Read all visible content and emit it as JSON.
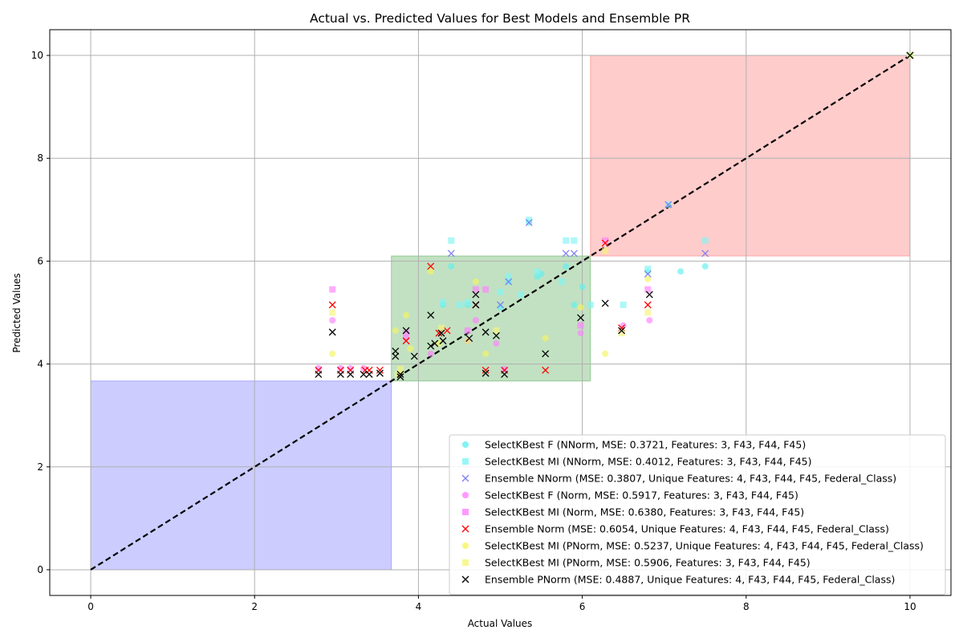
{
  "chart_data": {
    "type": "scatter",
    "title": "Actual vs. Predicted Values for Best Models and Ensemble PR",
    "xlabel": "Actual Values",
    "ylabel": "Predicted Values",
    "xlim": [
      -0.5,
      10.5
    ],
    "ylim": [
      -0.5,
      10.5
    ],
    "xticks": [
      0,
      2,
      4,
      6,
      8,
      10
    ],
    "yticks": [
      0,
      2,
      4,
      6,
      8,
      10
    ],
    "grid": true,
    "legend_position": "lower-right",
    "regions": [
      {
        "x": [
          0,
          3.67
        ],
        "y": [
          0,
          3.67
        ],
        "color": "#8080ff"
      },
      {
        "x": [
          3.67,
          6.1
        ],
        "y": [
          3.67,
          6.1
        ],
        "color": "#66b366"
      },
      {
        "x": [
          6.1,
          10
        ],
        "y": [
          6.1,
          10
        ],
        "color": "#ff8080"
      }
    ],
    "reference_line": {
      "from": [
        0,
        0
      ],
      "to": [
        10,
        10
      ],
      "color": "#000000",
      "style": "dashed"
    },
    "series": [
      {
        "name": "SelectKBest F (NNorm, MSE: 0.3721, Features: 3, F43, F44, F45)",
        "marker": "circle",
        "color": "#5ff0f0",
        "points": [
          [
            4.4,
            5.9
          ],
          [
            5.1,
            5.6
          ],
          [
            5.35,
            6.75
          ],
          [
            5.45,
            5.7
          ],
          [
            5.8,
            5.9
          ],
          [
            6.0,
            5.5
          ],
          [
            6.8,
            5.8
          ],
          [
            7.2,
            5.8
          ],
          [
            7.5,
            5.9
          ],
          [
            4.3,
            5.15
          ],
          [
            4.6,
            5.15
          ],
          [
            5.0,
            5.1
          ],
          [
            5.5,
            5.75
          ],
          [
            5.9,
            5.15
          ],
          [
            10,
            10
          ]
        ]
      },
      {
        "name": "SelectKBest MI (NNorm, MSE: 0.4012, Features: 3, F43, F44, F45)",
        "marker": "square",
        "color": "#7ff5f5",
        "points": [
          [
            4.4,
            6.4
          ],
          [
            5.35,
            6.8
          ],
          [
            5.8,
            6.4
          ],
          [
            5.9,
            6.4
          ],
          [
            7.5,
            6.4
          ],
          [
            5.1,
            5.7
          ],
          [
            5.45,
            5.8
          ],
          [
            6.8,
            5.85
          ],
          [
            7.05,
            7.1
          ],
          [
            4.3,
            5.2
          ],
          [
            4.5,
            5.15
          ],
          [
            4.6,
            5.2
          ],
          [
            5.0,
            5.4
          ],
          [
            5.25,
            5.35
          ],
          [
            5.75,
            5.6
          ],
          [
            6.1,
            5.15
          ],
          [
            6.5,
            5.15
          ],
          [
            10,
            10
          ]
        ]
      },
      {
        "name": "Ensemble NNorm (MSE: 0.3807, Unique Features: 4, F43, F44, F45, Federal_Class)",
        "marker": "x",
        "color": "#8080f0",
        "points": [
          [
            4.4,
            6.15
          ],
          [
            5.8,
            6.15
          ],
          [
            5.9,
            6.15
          ],
          [
            7.5,
            6.15
          ],
          [
            5.35,
            6.75
          ],
          [
            7.05,
            7.1
          ],
          [
            6.8,
            5.75
          ],
          [
            5.1,
            5.6
          ],
          [
            4.7,
            5.15
          ],
          [
            5.0,
            5.15
          ],
          [
            10,
            10
          ]
        ]
      },
      {
        "name": "SelectKBest F (Norm, MSE: 0.5917, Features: 3, F43, F44, F45)",
        "marker": "circle",
        "color": "#ff80ff",
        "points": [
          [
            2.95,
            4.85
          ],
          [
            2.78,
            3.92
          ],
          [
            3.05,
            3.92
          ],
          [
            3.17,
            3.92
          ],
          [
            3.33,
            3.92
          ],
          [
            3.85,
            4.5
          ],
          [
            4.6,
            4.45
          ],
          [
            4.7,
            4.85
          ],
          [
            4.95,
            4.4
          ],
          [
            5.05,
            3.9
          ],
          [
            5.98,
            4.6
          ],
          [
            6.82,
            4.85
          ],
          [
            6.5,
            4.75
          ],
          [
            4.15,
            4.2
          ]
        ]
      },
      {
        "name": "SelectKBest MI (Norm, MSE: 0.6380, Features: 3, F43, F44, F45)",
        "marker": "square",
        "color": "#ff80ff",
        "points": [
          [
            2.95,
            5.45
          ],
          [
            4.7,
            5.45
          ],
          [
            4.82,
            5.45
          ],
          [
            6.28,
            6.4
          ],
          [
            6.8,
            5.45
          ],
          [
            3.85,
            4.6
          ],
          [
            4.6,
            4.65
          ],
          [
            5.98,
            4.75
          ]
        ]
      },
      {
        "name": "Ensemble Norm (MSE: 0.6054, Unique Features: 4, F43, F44, F45, Federal_Class)",
        "marker": "x",
        "color": "#ff0000",
        "points": [
          [
            2.95,
            5.15
          ],
          [
            2.78,
            3.88
          ],
          [
            3.05,
            3.88
          ],
          [
            3.17,
            3.88
          ],
          [
            3.35,
            3.88
          ],
          [
            3.4,
            3.88
          ],
          [
            3.53,
            3.88
          ],
          [
            4.15,
            5.9
          ],
          [
            4.7,
            5.15
          ],
          [
            4.82,
            3.88
          ],
          [
            5.05,
            3.88
          ],
          [
            5.55,
            3.88
          ],
          [
            6.28,
            6.35
          ],
          [
            6.8,
            5.15
          ],
          [
            6.48,
            4.7
          ],
          [
            3.85,
            4.45
          ],
          [
            4.25,
            4.6
          ],
          [
            4.35,
            4.65
          ],
          [
            10,
            10
          ]
        ]
      },
      {
        "name": "SelectKBest MI (PNorm, MSE: 0.5237, Unique Features: 4, F43, F44, F45, Federal_Class)",
        "marker": "circle",
        "color": "#f5f55f",
        "points": [
          [
            2.95,
            4.2
          ],
          [
            3.72,
            4.65
          ],
          [
            3.85,
            4.95
          ],
          [
            4.15,
            5.8
          ],
          [
            4.7,
            5.6
          ],
          [
            4.82,
            4.2
          ],
          [
            5.55,
            4.5
          ],
          [
            6.28,
            4.2
          ],
          [
            6.8,
            5.65
          ],
          [
            5.98,
            5.1
          ],
          [
            3.9,
            4.3
          ],
          [
            4.25,
            4.4
          ],
          [
            4.6,
            4.45
          ]
        ]
      },
      {
        "name": "SelectKBest MI (PNorm, MSE: 0.5906, Features: 3, F43, F44, F45)",
        "marker": "square",
        "color": "#f5f57a",
        "points": [
          [
            2.95,
            5.0
          ],
          [
            3.75,
            3.8
          ],
          [
            3.78,
            3.9
          ],
          [
            4.28,
            4.7
          ],
          [
            4.95,
            4.65
          ],
          [
            6.28,
            6.2
          ],
          [
            6.8,
            5.0
          ],
          [
            6.48,
            4.6
          ],
          [
            10,
            10
          ]
        ]
      },
      {
        "name": "Ensemble PNorm (MSE: 0.4887, Unique Features: 4, F43, F44, F45, Federal_Class)",
        "marker": "x",
        "color": "#000000",
        "points": [
          [
            2.95,
            4.62
          ],
          [
            2.78,
            3.8
          ],
          [
            3.05,
            3.8
          ],
          [
            3.17,
            3.8
          ],
          [
            3.33,
            3.8
          ],
          [
            3.4,
            3.8
          ],
          [
            3.53,
            3.82
          ],
          [
            3.72,
            4.15
          ],
          [
            3.72,
            4.25
          ],
          [
            3.78,
            3.8
          ],
          [
            3.78,
            3.75
          ],
          [
            3.85,
            4.65
          ],
          [
            3.95,
            4.15
          ],
          [
            4.15,
            4.95
          ],
          [
            4.15,
            4.35
          ],
          [
            4.2,
            4.4
          ],
          [
            4.28,
            4.6
          ],
          [
            4.3,
            4.45
          ],
          [
            4.62,
            4.5
          ],
          [
            4.7,
            5.35
          ],
          [
            4.7,
            5.15
          ],
          [
            4.82,
            4.62
          ],
          [
            4.82,
            3.82
          ],
          [
            4.95,
            4.55
          ],
          [
            5.05,
            3.8
          ],
          [
            5.55,
            4.2
          ],
          [
            5.98,
            4.9
          ],
          [
            6.28,
            5.18
          ],
          [
            6.48,
            4.65
          ],
          [
            6.82,
            5.35
          ],
          [
            10,
            10
          ]
        ]
      }
    ]
  }
}
